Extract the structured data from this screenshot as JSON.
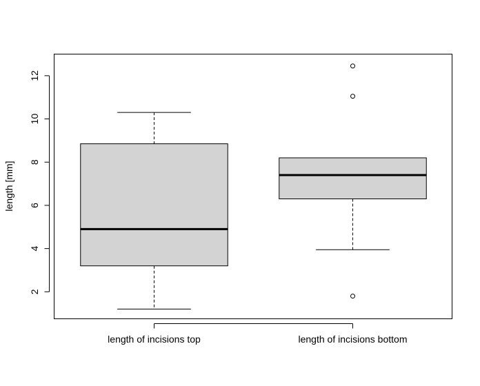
{
  "chart_data": {
    "type": "boxplot",
    "title": "",
    "xlabel": "",
    "ylabel": "length [mm]",
    "ylim": [
      0.75,
      13.0
    ],
    "yticks": [
      2,
      4,
      6,
      8,
      10,
      12
    ],
    "grid": false,
    "legend": "none",
    "categories": [
      "length of incisions top",
      "length of incisions bottom"
    ],
    "boxes": [
      {
        "category": "length of incisions top",
        "whisker_low": 1.2,
        "q1": 3.2,
        "median": 4.9,
        "q3": 8.85,
        "whisker_high": 10.3,
        "outliers": []
      },
      {
        "category": "length of incisions bottom",
        "whisker_low": 3.95,
        "q1": 6.3,
        "median": 7.4,
        "q3": 8.2,
        "whisker_high": 8.2,
        "outliers": [
          1.8,
          11.05,
          12.45
        ]
      }
    ],
    "colors": {
      "box_fill": "#d3d3d3",
      "stroke": "#000000"
    }
  }
}
